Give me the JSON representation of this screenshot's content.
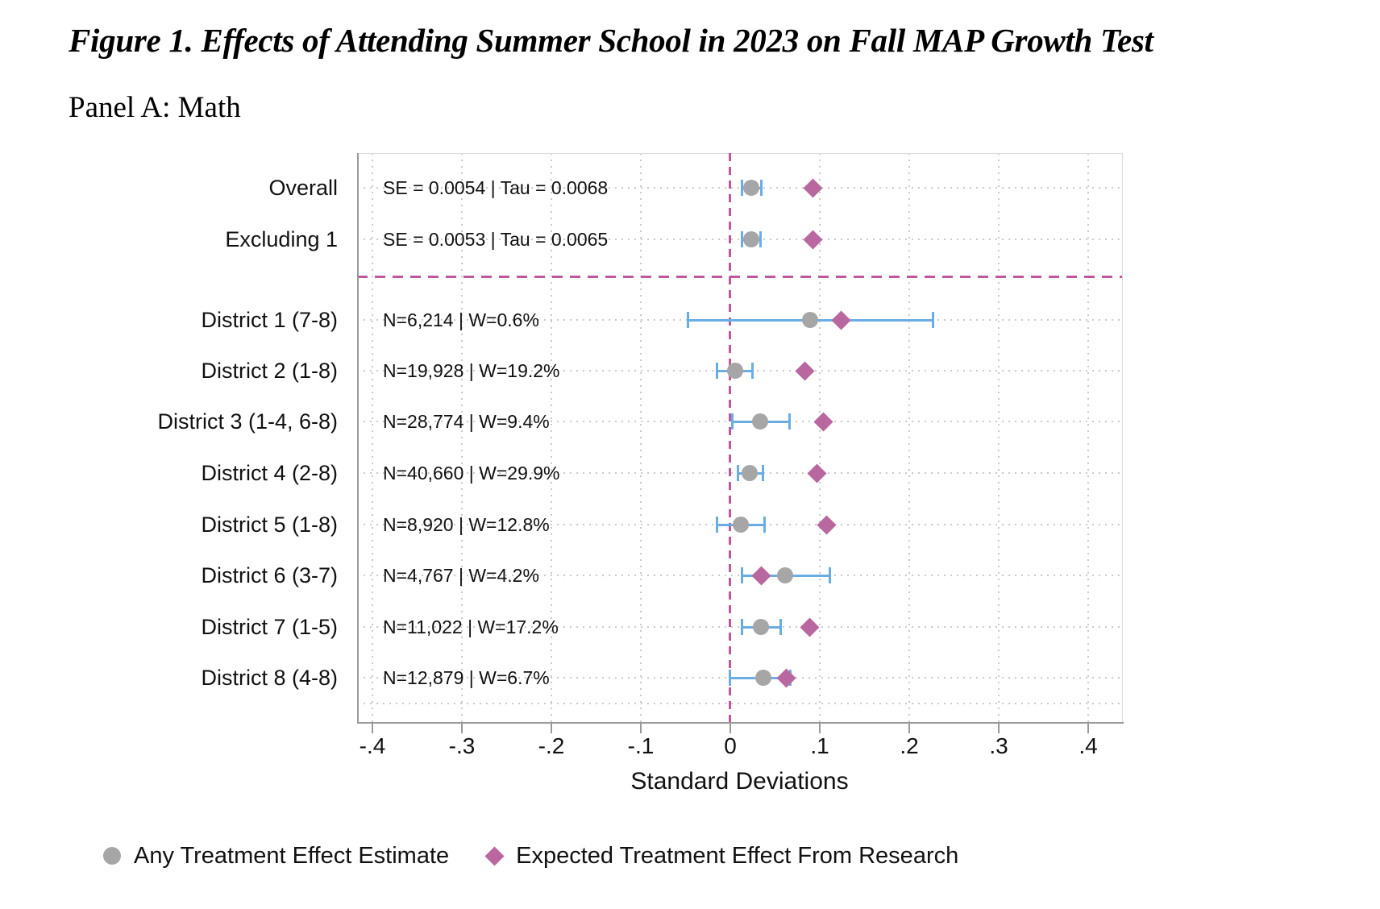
{
  "figure": {
    "title": "Figure 1. Effects of Attending Summer School in 2023 on Fall MAP Growth Test",
    "panel_label": "Panel A: Math"
  },
  "colors": {
    "reference_dash": "#c0569c",
    "estimate_marker": "#a6a6a6",
    "expected_marker": "#b9679f",
    "ci_bar": "#6aade4",
    "gridline": "#c9c9c9",
    "axis": "#9a9a9a"
  },
  "chart_data": {
    "type": "scatter",
    "subtype": "forest-plot",
    "xlabel": "Standard Deviations",
    "xlim": [
      -0.42,
      0.44
    ],
    "x_ticks": [
      -0.4,
      -0.3,
      -0.2,
      -0.1,
      0,
      0.1,
      0.2,
      0.3,
      0.4
    ],
    "x_tick_labels": [
      "-.4",
      "-.3",
      "-.2",
      "-.1",
      "0",
      ".1",
      ".2",
      ".3",
      ".4"
    ],
    "grid": true,
    "reference_line_x": 0,
    "separator_after_row_index": 1,
    "legend_position": "bottom",
    "legend": [
      {
        "label": "Any Treatment Effect Estimate",
        "marker": "circle"
      },
      {
        "label": "Expected Treatment Effect From Research",
        "marker": "diamond"
      }
    ],
    "rows": [
      {
        "label": "Overall",
        "annotation": "SE = 0.0054 | Tau = 0.0068",
        "estimate": 0.023,
        "ci_low": 0.013,
        "ci_high": 0.034,
        "expected": 0.092
      },
      {
        "label": "Excluding 1",
        "annotation": "SE = 0.0053 | Tau = 0.0065",
        "estimate": 0.023,
        "ci_low": 0.013,
        "ci_high": 0.033,
        "expected": 0.092
      },
      {
        "label": "District 1 (7-8)",
        "annotation": "N=6,214 | W=0.6%",
        "estimate": 0.089,
        "ci_low": -0.048,
        "ci_high": 0.226,
        "expected": 0.123
      },
      {
        "label": "District 2 (1-8)",
        "annotation": "N=19,928 | W=19.2%",
        "estimate": 0.005,
        "ci_low": -0.015,
        "ci_high": 0.024,
        "expected": 0.083
      },
      {
        "label": "District 3 (1-4, 6-8)",
        "annotation": "N=28,774 | W=9.4%",
        "estimate": 0.033,
        "ci_low": 0.002,
        "ci_high": 0.066,
        "expected": 0.104
      },
      {
        "label": "District 4 (2-8)",
        "annotation": "N=40,660 | W=29.9%",
        "estimate": 0.022,
        "ci_low": 0.008,
        "ci_high": 0.036,
        "expected": 0.096
      },
      {
        "label": "District 5 (1-8)",
        "annotation": "N=8,920 | W=12.8%",
        "estimate": 0.012,
        "ci_low": -0.015,
        "ci_high": 0.038,
        "expected": 0.107
      },
      {
        "label": "District 6 (3-7)",
        "annotation": "N=4,767 | W=4.2%",
        "estimate": 0.061,
        "ci_low": 0.013,
        "ci_high": 0.111,
        "expected": 0.034
      },
      {
        "label": "District 7 (1-5)",
        "annotation": "N=11,022 | W=17.2%",
        "estimate": 0.034,
        "ci_low": 0.013,
        "ci_high": 0.056,
        "expected": 0.088
      },
      {
        "label": "District 8 (4-8)",
        "annotation": "N=12,879 | W=6.7%",
        "estimate": 0.037,
        "ci_low": -0.001,
        "ci_high": 0.067,
        "expected": 0.062
      }
    ]
  }
}
